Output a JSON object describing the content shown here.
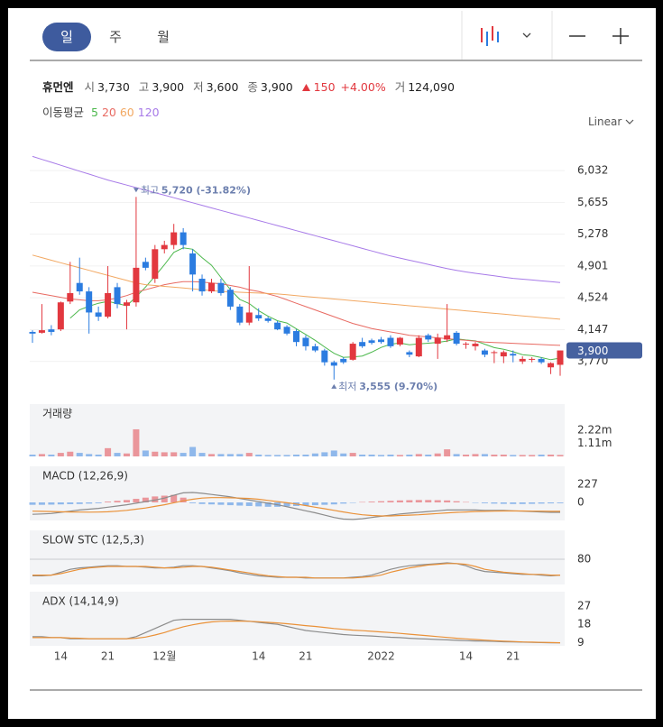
{
  "header": {
    "tabs": [
      "일",
      "주",
      "월"
    ],
    "name": "휴먼엔",
    "quote": [
      {
        "label": "시",
        "value": "3,730"
      },
      {
        "label": "고",
        "value": "3,900"
      },
      {
        "label": "저",
        "value": "3,600"
      },
      {
        "label": "종",
        "value": "3,900"
      }
    ],
    "change": "150",
    "change_pct": "+4.00%",
    "volume_label": "거",
    "volume": "124,090"
  },
  "chart_data": [
    {
      "type": "candlestick",
      "legend_title": "이동평균",
      "scale": "Linear",
      "last_price_label": "3,900",
      "up_color": "#e2383f",
      "down_color": "#2b7ce0",
      "grid": true,
      "categories": [
        null,
        null,
        null,
        "14",
        null,
        null,
        null,
        null,
        "21",
        null,
        null,
        null,
        null,
        null,
        "12월",
        null,
        null,
        null,
        null,
        null,
        null,
        null,
        null,
        null,
        "14",
        null,
        null,
        null,
        null,
        "21",
        null,
        null,
        null,
        null,
        null,
        null,
        null,
        "2022",
        null,
        null,
        null,
        null,
        null,
        null,
        null,
        null,
        "14",
        null,
        null,
        null,
        null,
        "21",
        null,
        null,
        null,
        null,
        null
      ],
      "open": [
        4120,
        4110,
        4150,
        4150,
        4480,
        4700,
        4600,
        4350,
        4300,
        4650,
        4430,
        4470,
        4950,
        4750,
        5100,
        5150,
        5300,
        5050,
        4750,
        4600,
        4700,
        4620,
        4420,
        4230,
        4320,
        4280,
        4230,
        4180,
        4130,
        4050,
        3950,
        3900,
        3760,
        3800,
        3790,
        4000,
        4020,
        4030,
        4050,
        3970,
        3880,
        3830,
        4080,
        3980,
        4030,
        4110,
        3970,
        3950,
        3900,
        3870,
        3830,
        3860,
        3770,
        3790,
        3800,
        3700,
        3730
      ],
      "high": [
        4140,
        4450,
        4200,
        4480,
        4950,
        5000,
        4650,
        4420,
        4900,
        4700,
        4500,
        5720,
        5000,
        5150,
        5200,
        5400,
        5350,
        5100,
        4800,
        4750,
        4750,
        4650,
        4450,
        4900,
        4400,
        4300,
        4250,
        4200,
        4150,
        4080,
        3980,
        3920,
        3780,
        3820,
        4000,
        4050,
        4040,
        4060,
        4080,
        4060,
        3900,
        4080,
        4100,
        4100,
        4450,
        4130,
        4000,
        4000,
        3920,
        3900,
        3900,
        3900,
        3830,
        3820,
        3820,
        3760,
        3900
      ],
      "low": [
        3990,
        4100,
        4080,
        4130,
        4450,
        4560,
        4100,
        4250,
        4280,
        4400,
        4150,
        4420,
        4850,
        4700,
        5050,
        5100,
        5100,
        4600,
        4550,
        4580,
        4550,
        4380,
        4200,
        4200,
        4250,
        4230,
        4140,
        4080,
        3950,
        3900,
        3880,
        3720,
        3555,
        3740,
        3780,
        3930,
        3970,
        3980,
        3930,
        3950,
        3820,
        3820,
        4000,
        3800,
        4000,
        3960,
        3920,
        3900,
        3820,
        3750,
        3750,
        3760,
        3740,
        3760,
        3740,
        3620,
        3600
      ],
      "close": [
        4100,
        4140,
        4120,
        4470,
        4580,
        4600,
        4350,
        4300,
        4580,
        4450,
        4470,
        4880,
        4880,
        5100,
        5150,
        5300,
        5150,
        4800,
        4600,
        4700,
        4580,
        4420,
        4230,
        4350,
        4280,
        4250,
        4150,
        4100,
        4000,
        3950,
        3900,
        3760,
        3720,
        3760,
        3980,
        3950,
        3990,
        4000,
        3950,
        4050,
        3850,
        4050,
        4030,
        4050,
        4080,
        3980,
        3980,
        3980,
        3850,
        3880,
        3880,
        3840,
        3800,
        3800,
        3760,
        3750,
        3900
      ],
      "series": [
        {
          "name": "5",
          "color": "#4cb84c",
          "values": [
            null,
            null,
            null,
            null,
            4282,
            4382,
            4424,
            4460,
            4482,
            4456,
            4430,
            4536,
            4652,
            4780,
            4916,
            5062,
            5116,
            5100,
            5000,
            4910,
            4766,
            4620,
            4506,
            4456,
            4372,
            4306,
            4252,
            4226,
            4156,
            4090,
            4020,
            3942,
            3866,
            3818,
            3824,
            3834,
            3880,
            3936,
            3974,
            3988,
            3968,
            3978,
            3986,
            3996,
            4012,
            4038,
            4024,
            4014,
            3974,
            3934,
            3914,
            3886,
            3850,
            3840,
            3816,
            3790,
            3810
          ]
        },
        {
          "name": "20",
          "color": "#e86a62",
          "values": [
            4590,
            4570,
            4550,
            4530,
            4510,
            4500,
            4490,
            4490,
            4500,
            4520,
            4550,
            4590,
            4620,
            4650,
            4680,
            4700,
            4715,
            4715,
            4710,
            4700,
            4690,
            4670,
            4650,
            4620,
            4600,
            4570,
            4540,
            4500,
            4460,
            4420,
            4380,
            4340,
            4300,
            4260,
            4220,
            4190,
            4160,
            4140,
            4120,
            4100,
            4080,
            4070,
            4060,
            4050,
            4040,
            4030,
            4020,
            4010,
            4000,
            3995,
            3990,
            3985,
            3980,
            3975,
            3970,
            3965,
            3960
          ]
        },
        {
          "name": "60",
          "color": "#f2a862",
          "values": [
            5030,
            5000,
            4970,
            4940,
            4910,
            4880,
            4850,
            4820,
            4790,
            4760,
            4730,
            4700,
            4680,
            4670,
            4660,
            4650,
            4640,
            4630,
            4620,
            4610,
            4600,
            4595,
            4590,
            4585,
            4580,
            4575,
            4570,
            4560,
            4550,
            4540,
            4530,
            4520,
            4510,
            4500,
            4490,
            4480,
            4470,
            4460,
            4450,
            4440,
            4430,
            4420,
            4410,
            4400,
            4390,
            4380,
            4370,
            4360,
            4350,
            4340,
            4330,
            4320,
            4310,
            4300,
            4290,
            4280,
            4270
          ]
        },
        {
          "name": "120",
          "color": "#a77ae8",
          "values": [
            6200,
            6165,
            6130,
            6095,
            6060,
            6025,
            5990,
            5955,
            5920,
            5890,
            5860,
            5830,
            5800,
            5770,
            5740,
            5710,
            5680,
            5650,
            5620,
            5590,
            5560,
            5530,
            5500,
            5470,
            5440,
            5410,
            5380,
            5350,
            5320,
            5290,
            5260,
            5230,
            5200,
            5170,
            5140,
            5110,
            5080,
            5050,
            5020,
            4995,
            4970,
            4945,
            4920,
            4895,
            4870,
            4850,
            4830,
            4815,
            4800,
            4785,
            4770,
            4755,
            4745,
            4735,
            4725,
            4715,
            4705
          ]
        }
      ],
      "annotations": [
        {
          "label": "최고",
          "text": "5,720 (-31.82%)"
        },
        {
          "label": "최저",
          "text": "3,555 (9.70%)"
        }
      ],
      "ylim": [
        3350,
        6450
      ],
      "yticks": [
        {
          "value": 3770,
          "label": "3,770"
        },
        {
          "value": 4147,
          "label": "4,147"
        },
        {
          "value": 4524,
          "label": "4,524"
        },
        {
          "value": 4901,
          "label": "4,901"
        },
        {
          "value": 5278,
          "label": "5,278"
        },
        {
          "value": 5655,
          "label": "5,655"
        },
        {
          "value": 6032,
          "label": "6,032"
        }
      ]
    },
    {
      "type": "bar",
      "title": "거래량",
      "values": [
        150000,
        200000,
        150000,
        300000,
        400000,
        300000,
        200000,
        150000,
        700000,
        300000,
        250000,
        2300000,
        500000,
        400000,
        350000,
        350000,
        300000,
        800000,
        300000,
        200000,
        200000,
        200000,
        200000,
        300000,
        150000,
        120000,
        120000,
        120000,
        150000,
        150000,
        250000,
        350000,
        500000,
        250000,
        300000,
        150000,
        150000,
        120000,
        150000,
        120000,
        150000,
        200000,
        150000,
        250000,
        600000,
        200000,
        150000,
        200000,
        200000,
        150000,
        150000,
        120000,
        120000,
        120000,
        150000,
        150000,
        124090
      ],
      "ylim": [
        0,
        4440000
      ],
      "yticks": [
        {
          "value": 1110000,
          "label": "1.11m"
        },
        {
          "value": 2220000,
          "label": "2.22m"
        }
      ]
    },
    {
      "type": "line",
      "title": "MACD (12,26,9)",
      "histogram": [
        -30,
        -30,
        -28,
        -25,
        -22,
        -20,
        -15,
        -10,
        10,
        20,
        30,
        45,
        60,
        75,
        85,
        95,
        60,
        -10,
        -20,
        -25,
        -30,
        -35,
        -40,
        -45,
        -50,
        -55,
        -55,
        -50,
        -45,
        -40,
        -35,
        -30,
        -25,
        -15,
        -5,
        5,
        10,
        15,
        20,
        25,
        28,
        30,
        30,
        28,
        25,
        15,
        5,
        -5,
        -10,
        -15,
        -18,
        -20,
        -20,
        -18,
        -15,
        -12,
        -10
      ],
      "series": [
        {
          "color": "#8c8c8c",
          "values": [
            -150,
            -145,
            -140,
            -125,
            -110,
            -95,
            -85,
            -75,
            -60,
            -45,
            -30,
            -10,
            10,
            30,
            55,
            90,
            120,
            125,
            115,
            100,
            85,
            70,
            50,
            30,
            10,
            -10,
            -30,
            -55,
            -80,
            -105,
            -130,
            -160,
            -190,
            -210,
            -215,
            -205,
            -190,
            -175,
            -160,
            -145,
            -135,
            -125,
            -115,
            -105,
            -95,
            -95,
            -95,
            -95,
            -100,
            -100,
            -100,
            -105,
            -110,
            -115,
            -120,
            -125,
            -125
          ]
        },
        {
          "color": "#ea9138",
          "values": [
            -110,
            -112,
            -115,
            -118,
            -120,
            -122,
            -123,
            -122,
            -118,
            -110,
            -100,
            -85,
            -70,
            -50,
            -30,
            -5,
            20,
            40,
            55,
            60,
            60,
            58,
            55,
            50,
            40,
            25,
            10,
            -5,
            -20,
            -40,
            -60,
            -80,
            -100,
            -120,
            -140,
            -155,
            -165,
            -170,
            -170,
            -165,
            -160,
            -155,
            -148,
            -140,
            -132,
            -125,
            -120,
            -115,
            -112,
            -110,
            -108,
            -108,
            -108,
            -110,
            -110,
            -112,
            -112
          ]
        }
      ],
      "ylim": [
        -227,
        454
      ],
      "yticks": [
        0,
        227
      ]
    },
    {
      "type": "line",
      "title": "SLOW STC (12,5,3)",
      "grid": true,
      "series": [
        {
          "color": "#8c8c8c",
          "values": [
            57,
            57,
            58,
            62,
            66,
            68,
            69,
            70,
            71,
            71,
            70,
            70,
            69,
            68,
            68,
            69,
            71,
            71,
            70,
            68,
            66,
            64,
            61,
            59,
            57,
            56,
            55,
            55,
            55,
            54,
            54,
            54,
            54,
            54,
            55,
            56,
            58,
            62,
            66,
            69,
            71,
            72,
            73,
            74,
            75,
            74,
            71,
            66,
            63,
            62,
            61,
            60,
            59,
            59,
            58,
            57,
            58
          ]
        },
        {
          "color": "#ea9138",
          "values": [
            58,
            58,
            58,
            60,
            63,
            66,
            68,
            69,
            70,
            70,
            70,
            70,
            70,
            69,
            68,
            68,
            69,
            70,
            70,
            69,
            67,
            65,
            63,
            61,
            59,
            57,
            56,
            55,
            55,
            55,
            54,
            54,
            54,
            54,
            54,
            55,
            56,
            58,
            62,
            65,
            68,
            70,
            72,
            73,
            74,
            74,
            73,
            70,
            66,
            64,
            62,
            61,
            60,
            59,
            59,
            58,
            58
          ]
        }
      ],
      "ylim": [
        45,
        120
      ],
      "yticks": [
        80
      ]
    },
    {
      "type": "line",
      "title": "ADX (14,14,9)",
      "series": [
        {
          "color": "#8c8c8c",
          "values": [
            12,
            12,
            11.5,
            11.5,
            11,
            11,
            11,
            11,
            11,
            11,
            11,
            12,
            14,
            16,
            18,
            20,
            20.5,
            20.5,
            20.5,
            20.5,
            20.5,
            20.5,
            20,
            19.5,
            19,
            18.5,
            18,
            17,
            16,
            15,
            14.5,
            14,
            13.5,
            13,
            12.7,
            12.5,
            12.3,
            12,
            11.7,
            11.5,
            11.2,
            11,
            10.8,
            10.6,
            10.4,
            10.2,
            10,
            9.9,
            9.8,
            9.7,
            9.5,
            9.4,
            9.3,
            9.2,
            9.1,
            9,
            9
          ]
        },
        {
          "color": "#ea9138",
          "values": [
            11.5,
            11.5,
            11.5,
            11.5,
            11.3,
            11.2,
            11,
            11,
            11,
            11,
            11,
            11.2,
            11.8,
            12.8,
            14,
            15.5,
            16.8,
            17.8,
            18.6,
            19.2,
            19.5,
            19.6,
            19.6,
            19.5,
            19.3,
            19,
            18.7,
            18.3,
            17.9,
            17.4,
            17,
            16.5,
            16,
            15.6,
            15.2,
            14.9,
            14.6,
            14.3,
            14,
            13.6,
            13.2,
            12.8,
            12.4,
            12,
            11.6,
            11.2,
            10.9,
            10.6,
            10.3,
            10,
            9.8,
            9.6,
            9.4,
            9.3,
            9.2,
            9.1,
            9
          ]
        }
      ],
      "ylim": [
        7.5,
        34
      ],
      "yticks": [
        9,
        18,
        27
      ]
    }
  ]
}
